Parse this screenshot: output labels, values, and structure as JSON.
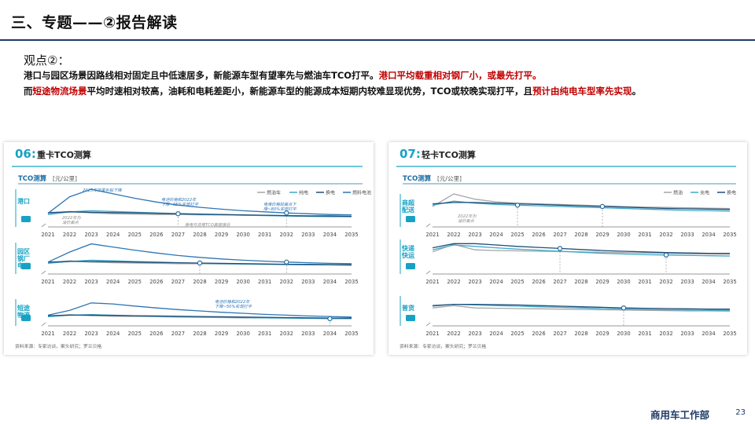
{
  "slide": {
    "title": "三、专题——②报告解读",
    "viewpoint_label": "观点②：",
    "line1": {
      "normal": "港口与园区场景因路线相对固定且中低速居多，新能源车型有望率先与燃油车TCO打平。",
      "highlight": "港口平均载重相对钢厂小，或最先打平。"
    },
    "line2": {
      "prefix": "而",
      "highlight1": "短途物流场景",
      "middle": "平均时速相对较高，油耗和电耗差距小，新能源车型的能源成本短期内较难显现优势，TCO或较晚实现打平，且",
      "highlight2": "预计由纯电车型率先实现",
      "suffix": "。"
    },
    "footer_dept": "商用车工作部",
    "page_number": "23"
  },
  "colors": {
    "title_rule": "#1f3a64",
    "accent_teal": "#17a2c4",
    "highlight_red": "#c00000",
    "fuel": "#a6a6a6",
    "bev": "#3fa9c9",
    "swap": "#1f4e79",
    "fcev": "#2e75b6"
  },
  "chart_data": [
    {
      "type": "line",
      "number": "06:",
      "title": "重卡TCO测算",
      "axis_title": "TCO测算",
      "unit": "[元/公里]",
      "legend": [
        "燃油车",
        "纯电",
        "换电",
        "燃料电池"
      ],
      "x": [
        2021,
        2022,
        2023,
        2024,
        2025,
        2026,
        2027,
        2028,
        2029,
        2030,
        2031,
        2032,
        2033,
        2034,
        2035
      ],
      "x_ticks": [
        "2021",
        "2022",
        "2023",
        "2024",
        "2025",
        "2026",
        "2027",
        "2028",
        "2029",
        "2030",
        "2031",
        "2032",
        "2033",
        "2034",
        "2035"
      ],
      "rows": [
        {
          "label": "港口",
          "series": [
            {
              "name": "燃油车",
              "values": [
                0.36,
                0.41,
                0.37,
                0.35,
                0.34,
                0.33,
                0.33,
                0.32,
                0.32,
                0.31,
                0.31,
                0.3,
                0.3,
                0.3,
                0.29
              ]
            },
            {
              "name": "纯电",
              "values": [
                0.33,
                0.4,
                0.43,
                0.41,
                0.39,
                0.37,
                0.35,
                0.33,
                0.32,
                0.31,
                0.3,
                0.29,
                0.28,
                0.27,
                0.27
              ]
            },
            {
              "name": "换电",
              "values": [
                0.38,
                0.4,
                0.39,
                0.38,
                0.37,
                0.36,
                0.35,
                0.34,
                0.33,
                0.32,
                0.31,
                0.3,
                0.29,
                0.29,
                0.28
              ]
            },
            {
              "name": "燃料电池",
              "values": [
                0.36,
                0.8,
                1.0,
                0.88,
                0.76,
                0.66,
                0.58,
                0.52,
                0.47,
                0.43,
                0.4,
                0.37,
                0.35,
                0.33,
                0.32
              ]
            }
          ],
          "markers": [
            {
              "series": "换电",
              "x": 2027
            },
            {
              "series": "燃料电池",
              "x": 2032
            }
          ],
          "annotations": [
            "2023年加氢补贴下降",
            "2022年为\n油价高点",
            "电池价格和2022年\n下降~35%实现打平",
            "电堆价格较高点下\n降~80%实现打平",
            "换电与充电TCO高度接近"
          ]
        },
        {
          "label": "园区\n钢厂\n电厂",
          "series": [
            {
              "name": "燃油车",
              "values": [
                0.36,
                0.42,
                0.38,
                0.36,
                0.35,
                0.34,
                0.33,
                0.33,
                0.32,
                0.32,
                0.31,
                0.31,
                0.3,
                0.3,
                0.3
              ]
            },
            {
              "name": "纯电",
              "values": [
                0.34,
                0.4,
                0.44,
                0.42,
                0.4,
                0.38,
                0.36,
                0.34,
                0.33,
                0.32,
                0.31,
                0.3,
                0.29,
                0.29,
                0.28
              ]
            },
            {
              "name": "换电",
              "values": [
                0.38,
                0.4,
                0.4,
                0.39,
                0.38,
                0.37,
                0.36,
                0.35,
                0.34,
                0.33,
                0.32,
                0.31,
                0.31,
                0.3,
                0.29
              ]
            },
            {
              "name": "燃料电池",
              "values": [
                0.38,
                0.7,
                0.96,
                0.86,
                0.76,
                0.67,
                0.59,
                0.53,
                0.48,
                0.44,
                0.41,
                0.38,
                0.36,
                0.34,
                0.33
              ]
            }
          ],
          "markers": [
            {
              "series": "换电",
              "x": 2028
            },
            {
              "series": "燃料电池",
              "x": 2032
            }
          ],
          "annotations": []
        },
        {
          "label": "短途\n物流",
          "series": [
            {
              "name": "燃油车",
              "values": [
                0.36,
                0.42,
                0.38,
                0.36,
                0.35,
                0.34,
                0.33,
                0.32,
                0.31,
                0.3,
                0.3,
                0.29,
                0.29,
                0.28,
                0.28
              ]
            },
            {
              "name": "纯电",
              "values": [
                0.34,
                0.4,
                0.42,
                0.4,
                0.38,
                0.36,
                0.35,
                0.33,
                0.32,
                0.31,
                0.3,
                0.29,
                0.28,
                0.27,
                0.27
              ]
            },
            {
              "name": "换电",
              "values": [
                0.38,
                0.4,
                0.4,
                0.39,
                0.38,
                0.37,
                0.36,
                0.35,
                0.34,
                0.33,
                0.32,
                0.31,
                0.3,
                0.29,
                0.29
              ]
            },
            {
              "name": "燃料电池",
              "values": [
                0.4,
                0.58,
                0.86,
                0.82,
                0.74,
                0.67,
                0.61,
                0.56,
                0.51,
                0.47,
                0.43,
                0.4,
                0.37,
                0.35,
                0.33
              ]
            }
          ],
          "markers": [
            {
              "series": "纯电",
              "x": 2034
            }
          ],
          "annotations": [
            "电池价格和2022年\n下降~50%实现打平"
          ]
        }
      ],
      "source": "资料来源：专家访谈，案头研究；罗兰贝格"
    },
    {
      "type": "line",
      "number": "07:",
      "title": "轻卡TCO测算",
      "axis_title": "TCO测算",
      "unit": "[元/公里]",
      "legend": [
        "燃油",
        "充电",
        "换电"
      ],
      "x": [
        2021,
        2022,
        2023,
        2024,
        2025,
        2026,
        2027,
        2028,
        2029,
        2030,
        2031,
        2032,
        2033,
        2034,
        2035
      ],
      "x_ticks": [
        "2021",
        "2022",
        "2023",
        "2024",
        "2025",
        "2026",
        "2027",
        "2028",
        "2029",
        "2030",
        "2031",
        "2032",
        "2033",
        "2034",
        "2035"
      ],
      "rows": [
        {
          "label": "商超\n配送",
          "series": [
            {
              "name": "燃油",
              "values": [
                0.62,
                1.0,
                0.84,
                0.76,
                0.72,
                0.7,
                0.68,
                0.66,
                0.64,
                0.62,
                0.6,
                0.59,
                0.58,
                0.57,
                0.56
              ]
            },
            {
              "name": "充电",
              "values": [
                0.66,
                0.78,
                0.72,
                0.68,
                0.66,
                0.64,
                0.62,
                0.6,
                0.58,
                0.56,
                0.54,
                0.52,
                0.5,
                0.49,
                0.48
              ]
            },
            {
              "name": "换电",
              "values": [
                0.7,
                0.74,
                0.74,
                0.72,
                0.7,
                0.68,
                0.66,
                0.64,
                0.62,
                0.6,
                0.58,
                0.56,
                0.55,
                0.54,
                0.53
              ]
            }
          ],
          "markers": [
            {
              "series": "充电",
              "x": 2025
            },
            {
              "series": "换电",
              "x": 2029
            }
          ],
          "annotations": [
            "2022年为\n油价高点"
          ]
        },
        {
          "label": "快递\n快运",
          "series": [
            {
              "name": "燃油",
              "values": [
                0.64,
                0.86,
                0.7,
                0.68,
                0.67,
                0.66,
                0.65,
                0.64,
                0.63,
                0.62,
                0.61,
                0.6,
                0.59,
                0.58,
                0.57
              ]
            },
            {
              "name": "充电",
              "values": [
                0.7,
                0.84,
                0.8,
                0.76,
                0.72,
                0.69,
                0.66,
                0.63,
                0.6,
                0.58,
                0.56,
                0.55,
                0.54,
                0.53,
                0.52
              ]
            },
            {
              "name": "换电",
              "values": [
                0.76,
                0.88,
                0.88,
                0.84,
                0.8,
                0.77,
                0.74,
                0.71,
                0.68,
                0.66,
                0.64,
                0.62,
                0.61,
                0.6,
                0.6
              ]
            }
          ],
          "markers": [
            {
              "series": "换电",
              "x": 2027
            },
            {
              "series": "充电",
              "x": 2032
            }
          ],
          "annotations": []
        },
        {
          "label": "普货",
          "series": [
            {
              "name": "燃油",
              "values": [
                0.6,
                0.68,
                0.6,
                0.59,
                0.58,
                0.57,
                0.56,
                0.55,
                0.54,
                0.53,
                0.52,
                0.51,
                0.5,
                0.5,
                0.49
              ]
            },
            {
              "name": "充电",
              "values": [
                0.66,
                0.72,
                0.7,
                0.68,
                0.66,
                0.64,
                0.62,
                0.6,
                0.58,
                0.56,
                0.55,
                0.54,
                0.53,
                0.52,
                0.52
              ]
            },
            {
              "name": "换电",
              "values": [
                0.68,
                0.72,
                0.72,
                0.71,
                0.7,
                0.68,
                0.66,
                0.64,
                0.62,
                0.6,
                0.59,
                0.58,
                0.57,
                0.56,
                0.56
              ]
            }
          ],
          "markers": [
            {
              "series": "换电",
              "x": 2030
            }
          ],
          "annotations": []
        }
      ],
      "source": "资料来源：专家访谈，案头研究；罗兰贝格"
    }
  ]
}
